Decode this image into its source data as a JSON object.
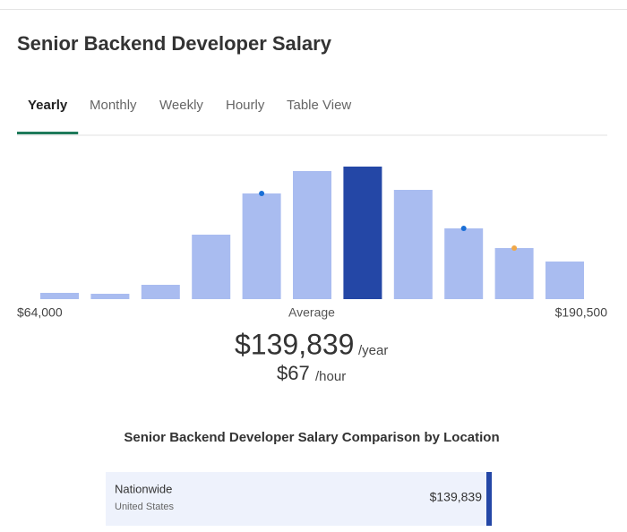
{
  "header": {
    "title": "Senior Backend Developer Salary"
  },
  "tabs": {
    "items": [
      "Yearly",
      "Monthly",
      "Weekly",
      "Hourly",
      "Table View"
    ],
    "active": 0
  },
  "chart_data": {
    "type": "bar",
    "values": [
      7,
      6,
      16,
      72,
      118,
      143,
      148,
      122,
      79,
      57,
      42
    ],
    "colors": [
      "#a9bcf0",
      "#a9bcf0",
      "#a9bcf0",
      "#a9bcf0",
      "#a9bcf0",
      "#a9bcf0",
      "#2447a6",
      "#a9bcf0",
      "#a9bcf0",
      "#a9bcf0",
      "#a9bcf0"
    ],
    "markers": [
      {
        "index": 4,
        "color": "#1a6fd6"
      },
      {
        "index": 8,
        "color": "#1a6fd6"
      },
      {
        "index": 9,
        "color": "#f0a848"
      }
    ],
    "min_label": "$64,000",
    "center_label": "Average",
    "max_label": "$190,500"
  },
  "summary": {
    "yearly": "$139,839",
    "yearly_unit": "/year",
    "hourly": "$67",
    "hourly_unit": "/hour"
  },
  "comparison": {
    "title": "Senior Backend Developer Salary Comparison by Location",
    "rows": [
      {
        "name": "Nationwide",
        "sub": "United States",
        "value": "$139,839"
      }
    ]
  }
}
